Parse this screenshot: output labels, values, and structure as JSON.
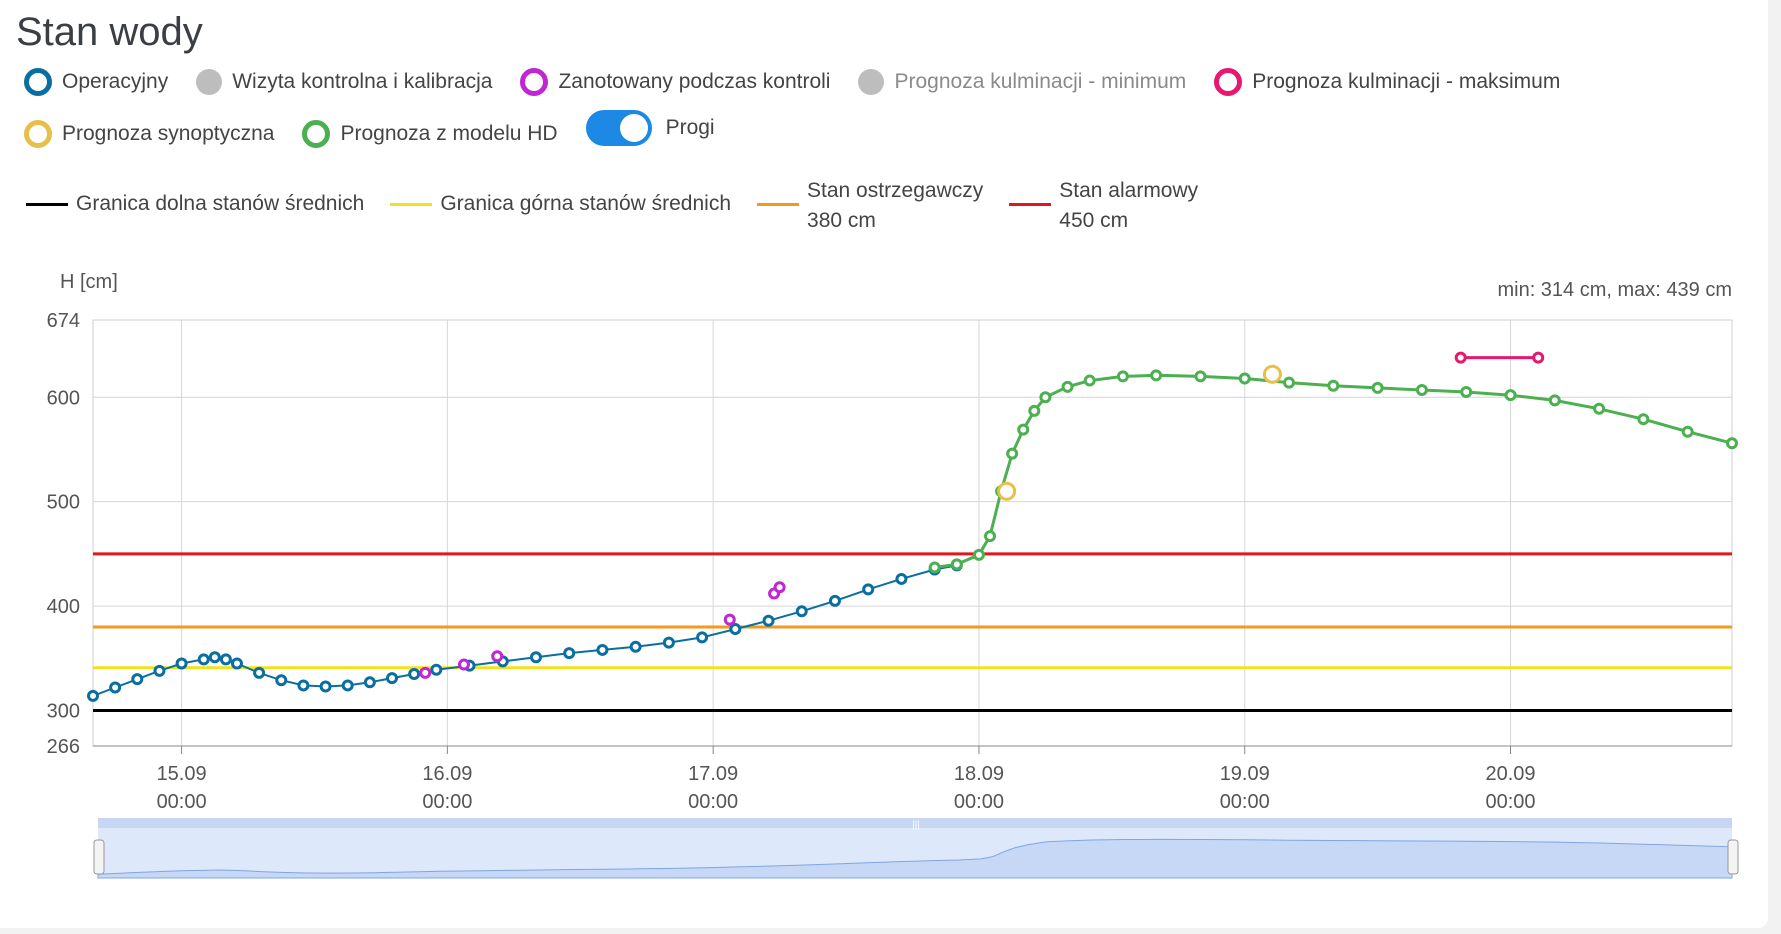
{
  "title": "Stan wody",
  "legend": [
    {
      "label": "Operacyjny",
      "kind": "ring",
      "color": "#0a6fa0",
      "dim": false
    },
    {
      "label": "Wizyta kontrolna i kalibracja",
      "kind": "dot",
      "color": "#bdbdbd",
      "dim": false
    },
    {
      "label": "Zanotowany podczas kontroli",
      "kind": "ring",
      "color": "#c026d3",
      "dim": false
    },
    {
      "label": "Prognoza kulminacji - minimum",
      "kind": "dot",
      "color": "#bdbdbd",
      "dim": true
    },
    {
      "label": "Prognoza kulminacji - maksimum",
      "kind": "ring",
      "color": "#e8176f",
      "dim": false
    },
    {
      "label": "Prognoza synoptyczna",
      "kind": "ring",
      "color": "#e6c04a",
      "dim": false
    },
    {
      "label": "Prognoza z modelu HD",
      "kind": "ring",
      "color": "#4caf50",
      "dim": false
    }
  ],
  "toggle": {
    "label": "Progi",
    "on": true
  },
  "thresholds": [
    {
      "label": "Granica dolna stanów średnich",
      "value_label": "",
      "color": "#000000",
      "value": 300
    },
    {
      "label": "Granica górna stanów średnich",
      "value_label": "",
      "color": "#f2e21c",
      "value": 341
    },
    {
      "label": "Stan ostrzegawczy",
      "value_label": "380 cm",
      "color": "#f39a1e",
      "value": 380
    },
    {
      "label": "Stan alarmowy",
      "value_label": "450 cm",
      "color": "#e0181e",
      "value": 450
    }
  ],
  "chart_data": {
    "type": "line",
    "ylabel": "H [cm]",
    "minmax": "min: 314 cm, max: 439 cm",
    "ylim": [
      266,
      674
    ],
    "yticks": [
      266,
      300,
      400,
      500,
      600,
      674
    ],
    "xlim": [
      "2025-09-14 16:00",
      "2025-09-20 20:00"
    ],
    "xticks": [
      {
        "t": "2025-09-15 00:00",
        "l1": "15.09",
        "l2": "00:00"
      },
      {
        "t": "2025-09-16 00:00",
        "l1": "16.09",
        "l2": "00:00"
      },
      {
        "t": "2025-09-17 00:00",
        "l1": "17.09",
        "l2": "00:00"
      },
      {
        "t": "2025-09-18 00:00",
        "l1": "18.09",
        "l2": "00:00"
      },
      {
        "t": "2025-09-19 00:00",
        "l1": "19.09",
        "l2": "00:00"
      },
      {
        "t": "2025-09-20 00:00",
        "l1": "20.09",
        "l2": "00:00"
      }
    ],
    "series": [
      {
        "name": "Operacyjny",
        "color": "#0a6fa0",
        "points": [
          [
            "2025-09-14 16:00",
            314
          ],
          [
            "2025-09-14 18:00",
            322
          ],
          [
            "2025-09-14 20:00",
            330
          ],
          [
            "2025-09-14 22:00",
            338
          ],
          [
            "2025-09-15 00:00",
            345
          ],
          [
            "2025-09-15 02:00",
            349
          ],
          [
            "2025-09-15 03:00",
            351
          ],
          [
            "2025-09-15 04:00",
            349
          ],
          [
            "2025-09-15 05:00",
            345
          ],
          [
            "2025-09-15 07:00",
            336
          ],
          [
            "2025-09-15 09:00",
            329
          ],
          [
            "2025-09-15 11:00",
            324
          ],
          [
            "2025-09-15 13:00",
            323
          ],
          [
            "2025-09-15 15:00",
            324
          ],
          [
            "2025-09-15 17:00",
            327
          ],
          [
            "2025-09-15 19:00",
            331
          ],
          [
            "2025-09-15 21:00",
            335
          ],
          [
            "2025-09-15 23:00",
            339
          ],
          [
            "2025-09-16 02:00",
            343
          ],
          [
            "2025-09-16 05:00",
            347
          ],
          [
            "2025-09-16 08:00",
            351
          ],
          [
            "2025-09-16 11:00",
            355
          ],
          [
            "2025-09-16 14:00",
            358
          ],
          [
            "2025-09-16 17:00",
            361
          ],
          [
            "2025-09-16 20:00",
            365
          ],
          [
            "2025-09-16 23:00",
            370
          ],
          [
            "2025-09-17 02:00",
            378
          ],
          [
            "2025-09-17 05:00",
            386
          ],
          [
            "2025-09-17 08:00",
            395
          ],
          [
            "2025-09-17 11:00",
            405
          ],
          [
            "2025-09-17 14:00",
            416
          ],
          [
            "2025-09-17 17:00",
            426
          ],
          [
            "2025-09-17 20:00",
            435
          ],
          [
            "2025-09-17 22:00",
            439
          ]
        ]
      },
      {
        "name": "Prognoza z modelu HD",
        "color": "#4caf50",
        "points": [
          [
            "2025-09-17 20:00",
            437
          ],
          [
            "2025-09-17 22:00",
            440
          ],
          [
            "2025-09-18 00:00",
            449
          ],
          [
            "2025-09-18 01:00",
            467
          ],
          [
            "2025-09-18 02:00",
            510
          ],
          [
            "2025-09-18 03:00",
            546
          ],
          [
            "2025-09-18 04:00",
            569
          ],
          [
            "2025-09-18 05:00",
            587
          ],
          [
            "2025-09-18 06:00",
            600
          ],
          [
            "2025-09-18 08:00",
            610
          ],
          [
            "2025-09-18 10:00",
            616
          ],
          [
            "2025-09-18 13:00",
            620
          ],
          [
            "2025-09-18 16:00",
            621
          ],
          [
            "2025-09-18 20:00",
            620
          ],
          [
            "2025-09-19 00:00",
            618
          ],
          [
            "2025-09-19 04:00",
            614
          ],
          [
            "2025-09-19 08:00",
            611
          ],
          [
            "2025-09-19 12:00",
            609
          ],
          [
            "2025-09-19 16:00",
            607
          ],
          [
            "2025-09-19 20:00",
            605
          ],
          [
            "2025-09-20 00:00",
            602
          ],
          [
            "2025-09-20 04:00",
            597
          ],
          [
            "2025-09-20 08:00",
            589
          ],
          [
            "2025-09-20 12:00",
            579
          ],
          [
            "2025-09-20 16:00",
            567
          ],
          [
            "2025-09-20 20:00",
            556
          ]
        ]
      },
      {
        "name": "Zanotowany podczas kontroli",
        "color": "#c026d3",
        "points": [
          [
            "2025-09-15 22:00",
            336
          ],
          [
            "2025-09-16 01:30",
            344
          ],
          [
            "2025-09-16 04:30",
            352
          ],
          [
            "2025-09-17 01:30",
            387
          ],
          [
            "2025-09-17 05:30",
            412
          ],
          [
            "2025-09-17 06:00",
            418
          ]
        ]
      },
      {
        "name": "Prognoza synoptyczna",
        "color": "#e6c04a",
        "points": [
          [
            "2025-09-18 02:30",
            510
          ],
          [
            "2025-09-19 02:30",
            622
          ]
        ]
      },
      {
        "name": "Prognoza kulminacji - maksimum",
        "color": "#e8176f",
        "points": [
          [
            "2025-09-19 19:30",
            638
          ],
          [
            "2025-09-20 02:30",
            638
          ]
        ]
      }
    ]
  }
}
